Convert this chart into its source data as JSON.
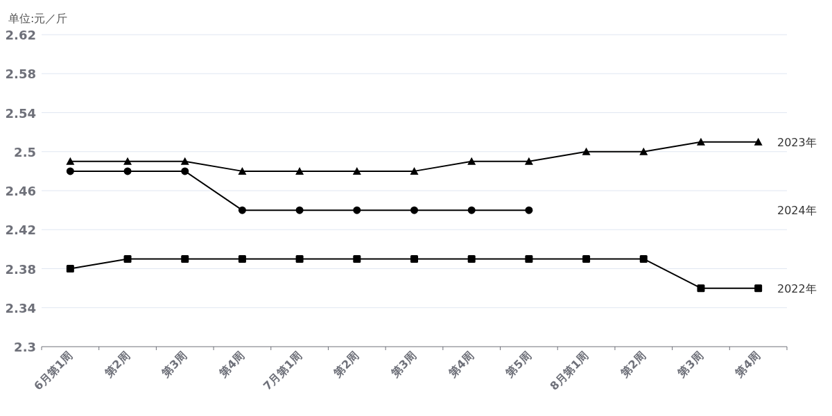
{
  "chart_data": {
    "type": "line",
    "ylabel": "单位:元／斤",
    "categories": [
      "6月第1周",
      "第2周",
      "第3周",
      "第4周",
      "7月第1周",
      "第2周",
      "第3周",
      "第4周",
      "第5周",
      "8月第1周",
      "第2周",
      "第3周",
      "第4周"
    ],
    "series": [
      {
        "name": "2023年",
        "color": "#000000",
        "marker": "triangle",
        "values": [
          2.49,
          2.49,
          2.49,
          2.48,
          2.48,
          2.48,
          2.48,
          2.49,
          2.49,
          2.5,
          2.5,
          2.51,
          2.51
        ]
      },
      {
        "name": "2024年",
        "color": "#000000",
        "marker": "circle",
        "values": [
          2.48,
          2.48,
          2.48,
          2.44,
          2.44,
          2.44,
          2.44,
          2.44,
          2.44,
          null,
          null,
          null,
          null
        ]
      },
      {
        "name": "2022年",
        "color": "#000000",
        "marker": "square",
        "values": [
          2.38,
          2.39,
          2.39,
          2.39,
          2.39,
          2.39,
          2.39,
          2.39,
          2.39,
          2.39,
          2.39,
          2.36,
          2.36
        ]
      }
    ],
    "ylim": [
      2.3,
      2.62
    ],
    "yticks": [
      2.3,
      2.34,
      2.38,
      2.42,
      2.46,
      2.5,
      2.54,
      2.58,
      2.62
    ],
    "grid": "y",
    "line_style": "solid"
  }
}
